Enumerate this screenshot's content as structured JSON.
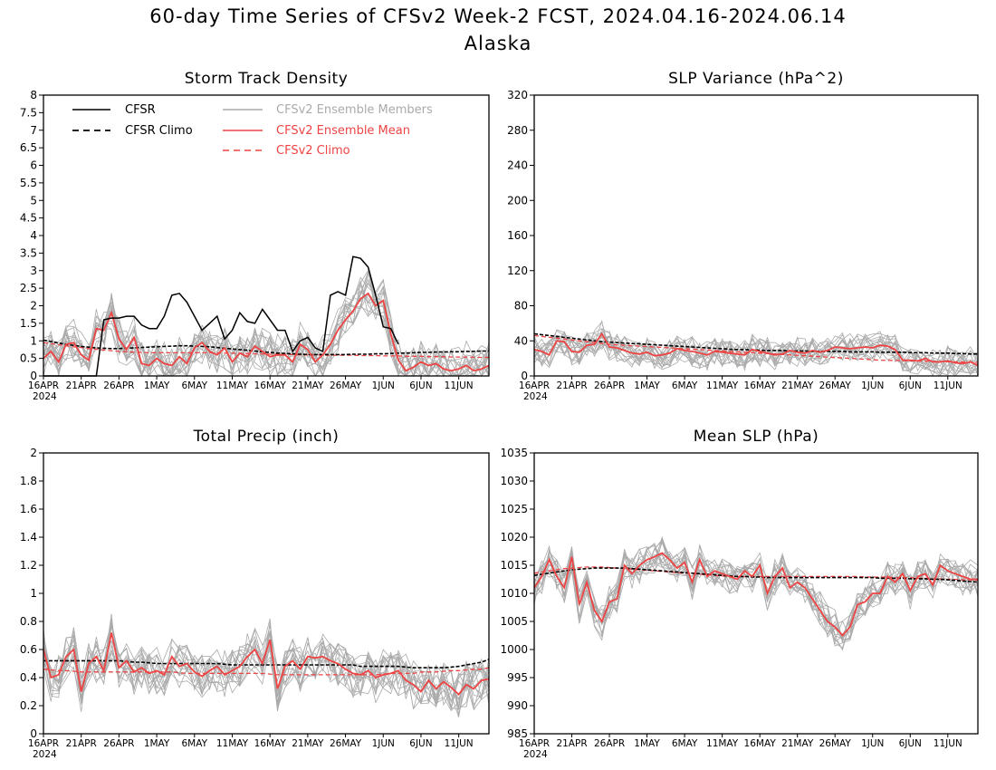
{
  "figure": {
    "title": "60-day Time Series of CFSv2 Week-2 FCST, 2024.04.16-2024.06.14",
    "subtitle": "Alaska"
  },
  "colors": {
    "cfsr": "#000000",
    "ensemble_members": "#aaaaaa",
    "ensemble_mean": "#ee4444",
    "cfsv2_climo": "#ee4444"
  },
  "legend": {
    "cfsr": "CFSR",
    "cfsr_climo": "CFSR Climo",
    "members": "CFSv2 Ensemble Members",
    "mean": "CFSv2 Ensemble Mean",
    "cfsv2_climo": "CFSv2 Climo",
    "placement": "top-left inside Storm Track Density panel"
  },
  "x_ticks": [
    "16APR",
    "21APR",
    "26APR",
    "1MAY",
    "6MAY",
    "11MAY",
    "16MAY",
    "21MAY",
    "26MAY",
    "1JUN",
    "6JUN",
    "11JUN"
  ],
  "x_year_label": "2024",
  "chart_data": [
    {
      "type": "line",
      "title": "Storm Track Density",
      "x": "days 0-59 from 16APR2024",
      "ylim": [
        0,
        8
      ],
      "yticks": [
        0,
        0.5,
        1,
        1.5,
        2,
        2.5,
        3,
        3.5,
        4,
        4.5,
        5,
        5.5,
        6,
        6.5,
        7,
        7.5,
        8
      ],
      "yticklabels": [
        "0",
        "0.5",
        "1",
        "1.5",
        "2",
        "2.5",
        "3",
        "3.5",
        "4",
        "4.5",
        "5",
        "5.5",
        "6",
        "6.5",
        "7",
        "7.5",
        "8"
      ],
      "spread": 0.45,
      "series": [
        {
          "name": "CFSR",
          "style": "solid-black",
          "values": [
            0,
            0,
            0,
            0,
            0,
            0,
            0,
            0,
            1.6,
            1.65,
            1.65,
            1.7,
            1.7,
            1.45,
            1.35,
            1.35,
            1.7,
            2.3,
            2.35,
            2.1,
            1.7,
            1.3,
            1.5,
            1.7,
            1.05,
            1.3,
            1.8,
            1.55,
            1.5,
            1.9,
            1.6,
            1.3,
            1.3,
            0.7,
            1.0,
            1.1,
            0.8,
            0.7,
            2.3,
            2.4,
            2.3,
            3.4,
            3.35,
            3.1,
            2.3,
            1.4,
            1.35,
            0.9
          ]
        },
        {
          "name": "CFSR Climo",
          "style": "dashed-black",
          "values": [
            1.02,
            0.98,
            0.94,
            0.9,
            0.87,
            0.84,
            0.82,
            0.8,
            0.79,
            0.78,
            0.78,
            0.79,
            0.8,
            0.81,
            0.82,
            0.83,
            0.84,
            0.85,
            0.86,
            0.86,
            0.85,
            0.84,
            0.83,
            0.81,
            0.79,
            0.77,
            0.75,
            0.73,
            0.71,
            0.69,
            0.67,
            0.65,
            0.64,
            0.63,
            0.62,
            0.61,
            0.61,
            0.61,
            0.61,
            0.61,
            0.61,
            0.62,
            0.62,
            0.62,
            0.63,
            0.63,
            0.64,
            0.65,
            0.65,
            0.66,
            0.67,
            0.67,
            0.68,
            0.68,
            0.69,
            0.69,
            0.7,
            0.7,
            0.71,
            0.71
          ]
        },
        {
          "name": "CFSv2 Ensemble Mean",
          "style": "solid-red",
          "values": [
            0.5,
            0.7,
            0.4,
            0.9,
            0.95,
            0.6,
            0.45,
            1.35,
            1.3,
            1.8,
            1.05,
            0.75,
            1.1,
            0.35,
            0.3,
            0.5,
            0.35,
            0.3,
            0.55,
            0.35,
            0.8,
            0.95,
            0.7,
            0.6,
            0.8,
            0.4,
            0.65,
            0.55,
            0.85,
            0.7,
            0.55,
            0.6,
            0.6,
            0.4,
            0.9,
            0.75,
            0.4,
            0.6,
            0.9,
            1.3,
            1.6,
            1.85,
            2.2,
            2.35,
            2.0,
            2.15,
            1.2,
            0.45,
            0.15,
            0.25,
            0.4,
            0.3,
            0.35,
            0.2,
            0.15,
            0.2,
            0.3,
            0.15,
            0.2,
            0.3
          ]
        },
        {
          "name": "CFSv2 Climo",
          "style": "dashed-red",
          "values": [
            0.95,
            0.92,
            0.89,
            0.86,
            0.83,
            0.81,
            0.78,
            0.76,
            0.74,
            0.72,
            0.7,
            0.69,
            0.68,
            0.67,
            0.66,
            0.66,
            0.66,
            0.66,
            0.66,
            0.66,
            0.66,
            0.66,
            0.66,
            0.66,
            0.65,
            0.65,
            0.64,
            0.64,
            0.63,
            0.63,
            0.62,
            0.62,
            0.61,
            0.61,
            0.6,
            0.6,
            0.6,
            0.59,
            0.59,
            0.59,
            0.59,
            0.59,
            0.58,
            0.58,
            0.58,
            0.57,
            0.57,
            0.57,
            0.56,
            0.56,
            0.56,
            0.55,
            0.55,
            0.55,
            0.54,
            0.54,
            0.54,
            0.53,
            0.53,
            0.53
          ]
        }
      ]
    },
    {
      "type": "line",
      "title": "SLP Variance (hPa^2)",
      "x": "days 0-59 from 16APR2024",
      "ylim": [
        0,
        320
      ],
      "yticks": [
        0,
        40,
        80,
        120,
        160,
        200,
        240,
        280,
        320
      ],
      "yticklabels": [
        "0",
        "40",
        "80",
        "120",
        "160",
        "200",
        "240",
        "280",
        "320"
      ],
      "spread": 12,
      "series": [
        {
          "name": "CFSR Climo",
          "style": "dashed-black",
          "values": [
            48,
            47,
            46,
            45,
            44,
            43,
            42,
            41,
            40,
            39,
            38.5,
            38,
            37.5,
            37,
            36.5,
            36,
            35.5,
            35,
            34.5,
            34,
            33.5,
            33,
            32.5,
            32,
            31.5,
            31,
            30.5,
            30,
            30,
            29.5,
            29.5,
            29,
            29,
            29,
            28.5,
            28.5,
            28.5,
            28,
            28,
            28,
            28,
            28,
            27.5,
            27.5,
            27.5,
            27.5,
            27,
            27,
            27,
            27,
            26.5,
            26.5,
            26.5,
            26,
            26,
            26,
            25.5,
            25.5,
            25,
            25
          ]
        },
        {
          "name": "CFSv2 Ensemble Mean",
          "style": "solid-red",
          "values": [
            30,
            28,
            24,
            40,
            39,
            28,
            27,
            35,
            36,
            48,
            33,
            32,
            29,
            26,
            25,
            27,
            23,
            24,
            26,
            31,
            29,
            28,
            26,
            24,
            28,
            27,
            26,
            25,
            24,
            30,
            28,
            26,
            24,
            25,
            29,
            27,
            26,
            29,
            27,
            29,
            33,
            32,
            31,
            32,
            33,
            32,
            35,
            34,
            30,
            18,
            18,
            17,
            20,
            16,
            16,
            17,
            15,
            14,
            16,
            12
          ]
        },
        {
          "name": "CFSv2 Climo",
          "style": "dashed-red",
          "values": [
            46,
            45,
            44,
            43,
            42,
            41,
            40,
            39,
            38,
            37,
            36,
            35.5,
            35,
            34.5,
            34,
            33.5,
            33,
            32.5,
            32,
            31.5,
            31,
            30.5,
            30,
            29.5,
            29,
            28.5,
            28,
            27.5,
            27,
            26.5,
            26,
            25.5,
            25,
            24.5,
            24,
            23.5,
            23,
            22.5,
            22,
            21.5,
            21,
            20.5,
            20,
            19.5,
            19,
            18.5,
            18,
            17.8,
            17.6,
            17.4,
            17.2,
            17,
            16.8,
            16.6,
            16.4,
            16.2,
            16,
            15.8,
            15.6,
            15.4
          ]
        }
      ]
    },
    {
      "type": "line",
      "title": "Total Precip (inch)",
      "x": "days 0-59 from 16APR2024",
      "ylim": [
        0,
        2
      ],
      "yticks": [
        0,
        0.2,
        0.4,
        0.6,
        0.8,
        1,
        1.2,
        1.4,
        1.6,
        1.8,
        2
      ],
      "yticklabels": [
        "0",
        "0.2",
        "0.4",
        "0.6",
        "0.8",
        "1",
        "1.2",
        "1.4",
        "1.6",
        "1.8",
        "2"
      ],
      "spread": 0.12,
      "series": [
        {
          "name": "CFSR Climo",
          "style": "dashed-black",
          "values": [
            0.52,
            0.52,
            0.52,
            0.52,
            0.52,
            0.52,
            0.52,
            0.52,
            0.52,
            0.52,
            0.52,
            0.515,
            0.51,
            0.51,
            0.505,
            0.5,
            0.5,
            0.5,
            0.5,
            0.5,
            0.5,
            0.5,
            0.5,
            0.5,
            0.495,
            0.49,
            0.49,
            0.49,
            0.49,
            0.49,
            0.49,
            0.49,
            0.49,
            0.49,
            0.49,
            0.49,
            0.49,
            0.49,
            0.49,
            0.49,
            0.49,
            0.49,
            0.48,
            0.48,
            0.48,
            0.48,
            0.48,
            0.48,
            0.475,
            0.47,
            0.47,
            0.47,
            0.47,
            0.47,
            0.475,
            0.48,
            0.49,
            0.5,
            0.51,
            0.53
          ]
        },
        {
          "name": "CFSv2 Ensemble Mean",
          "style": "solid-red",
          "values": [
            0.6,
            0.4,
            0.42,
            0.55,
            0.6,
            0.3,
            0.5,
            0.55,
            0.45,
            0.72,
            0.47,
            0.52,
            0.44,
            0.47,
            0.43,
            0.45,
            0.42,
            0.55,
            0.48,
            0.5,
            0.44,
            0.41,
            0.45,
            0.48,
            0.42,
            0.45,
            0.48,
            0.55,
            0.6,
            0.5,
            0.67,
            0.32,
            0.48,
            0.52,
            0.46,
            0.55,
            0.54,
            0.55,
            0.52,
            0.5,
            0.46,
            0.43,
            0.42,
            0.45,
            0.4,
            0.42,
            0.43,
            0.45,
            0.38,
            0.35,
            0.3,
            0.38,
            0.32,
            0.37,
            0.33,
            0.28,
            0.35,
            0.32,
            0.38,
            0.39
          ]
        },
        {
          "name": "CFSv2 Climo",
          "style": "dashed-red",
          "values": [
            0.46,
            0.455,
            0.45,
            0.45,
            0.445,
            0.44,
            0.44,
            0.44,
            0.44,
            0.44,
            0.44,
            0.44,
            0.44,
            0.44,
            0.44,
            0.44,
            0.44,
            0.44,
            0.435,
            0.43,
            0.43,
            0.43,
            0.43,
            0.43,
            0.43,
            0.43,
            0.43,
            0.43,
            0.43,
            0.43,
            0.425,
            0.42,
            0.42,
            0.42,
            0.42,
            0.42,
            0.42,
            0.42,
            0.42,
            0.42,
            0.42,
            0.42,
            0.42,
            0.42,
            0.42,
            0.425,
            0.43,
            0.43,
            0.43,
            0.43,
            0.44,
            0.44,
            0.44,
            0.445,
            0.45,
            0.45,
            0.455,
            0.46,
            0.46,
            0.47
          ]
        }
      ]
    },
    {
      "type": "line",
      "title": "Mean SLP (hPa)",
      "x": "days 0-59 from 16APR2024",
      "ylim": [
        985,
        1035
      ],
      "yticks": [
        985,
        990,
        995,
        1000,
        1005,
        1010,
        1015,
        1020,
        1025,
        1030,
        1035
      ],
      "yticklabels": [
        "985",
        "990",
        "995",
        "1000",
        "1005",
        "1010",
        "1015",
        "1020",
        "1025",
        "1030",
        "1035"
      ],
      "spread": 2.2,
      "series": [
        {
          "name": "CFSR Climo",
          "style": "dashed-black",
          "values": [
            1013.2,
            1013.4,
            1013.6,
            1013.8,
            1014,
            1014.2,
            1014.3,
            1014.4,
            1014.5,
            1014.5,
            1014.5,
            1014.5,
            1014.5,
            1014.4,
            1014.3,
            1014.2,
            1014.1,
            1014,
            1013.9,
            1013.8,
            1013.7,
            1013.6,
            1013.5,
            1013.4,
            1013.3,
            1013.2,
            1013.1,
            1013,
            1013,
            1012.9,
            1012.9,
            1012.8,
            1012.8,
            1012.8,
            1012.8,
            1012.8,
            1012.8,
            1012.8,
            1012.8,
            1012.8,
            1012.8,
            1012.8,
            1012.8,
            1012.8,
            1012.8,
            1012.8,
            1012.7,
            1012.7,
            1012.7,
            1012.7,
            1012.6,
            1012.6,
            1012.6,
            1012.5,
            1012.5,
            1012.4,
            1012.3,
            1012.2,
            1012.1,
            1012
          ]
        },
        {
          "name": "CFSv2 Ensemble Mean",
          "style": "solid-red",
          "values": [
            1011,
            1013,
            1016,
            1013,
            1011,
            1016.5,
            1008,
            1012,
            1007,
            1005,
            1008.5,
            1009,
            1015,
            1013.5,
            1015,
            1016,
            1016.5,
            1017.2,
            1016,
            1014.5,
            1015.5,
            1012,
            1016,
            1013,
            1014,
            1013.5,
            1013,
            1012.5,
            1014,
            1013,
            1015,
            1010,
            1013,
            1014.5,
            1011,
            1012,
            1011,
            1009,
            1007,
            1005,
            1004,
            1002.5,
            1004,
            1008,
            1008.5,
            1010,
            1010,
            1013,
            1012,
            1013.5,
            1010.5,
            1013,
            1013.5,
            1011.5,
            1015,
            1014,
            1013.5,
            1013,
            1012.5,
            1012.5
          ]
        },
        {
          "name": "CFSv2 Climo",
          "style": "dashed-red",
          "values": [
            1013.6,
            1013.8,
            1014,
            1014.2,
            1014.4,
            1014.5,
            1014.6,
            1014.7,
            1014.7,
            1014.7,
            1014.6,
            1014.5,
            1014.4,
            1014.3,
            1014.2,
            1014.1,
            1014,
            1013.9,
            1013.8,
            1013.7,
            1013.6,
            1013.5,
            1013.4,
            1013.3,
            1013.2,
            1013.1,
            1013.1,
            1013,
            1013,
            1013,
            1013,
            1013,
            1013,
            1013,
            1013,
            1013,
            1013,
            1013,
            1013,
            1013,
            1013,
            1013,
            1013,
            1013,
            1012.9,
            1012.9,
            1012.9,
            1012.9,
            1012.8,
            1012.8,
            1012.8,
            1012.7,
            1012.7,
            1012.6,
            1012.6,
            1012.5,
            1012.5,
            1012.4,
            1012.4,
            1012.3
          ]
        }
      ]
    }
  ]
}
